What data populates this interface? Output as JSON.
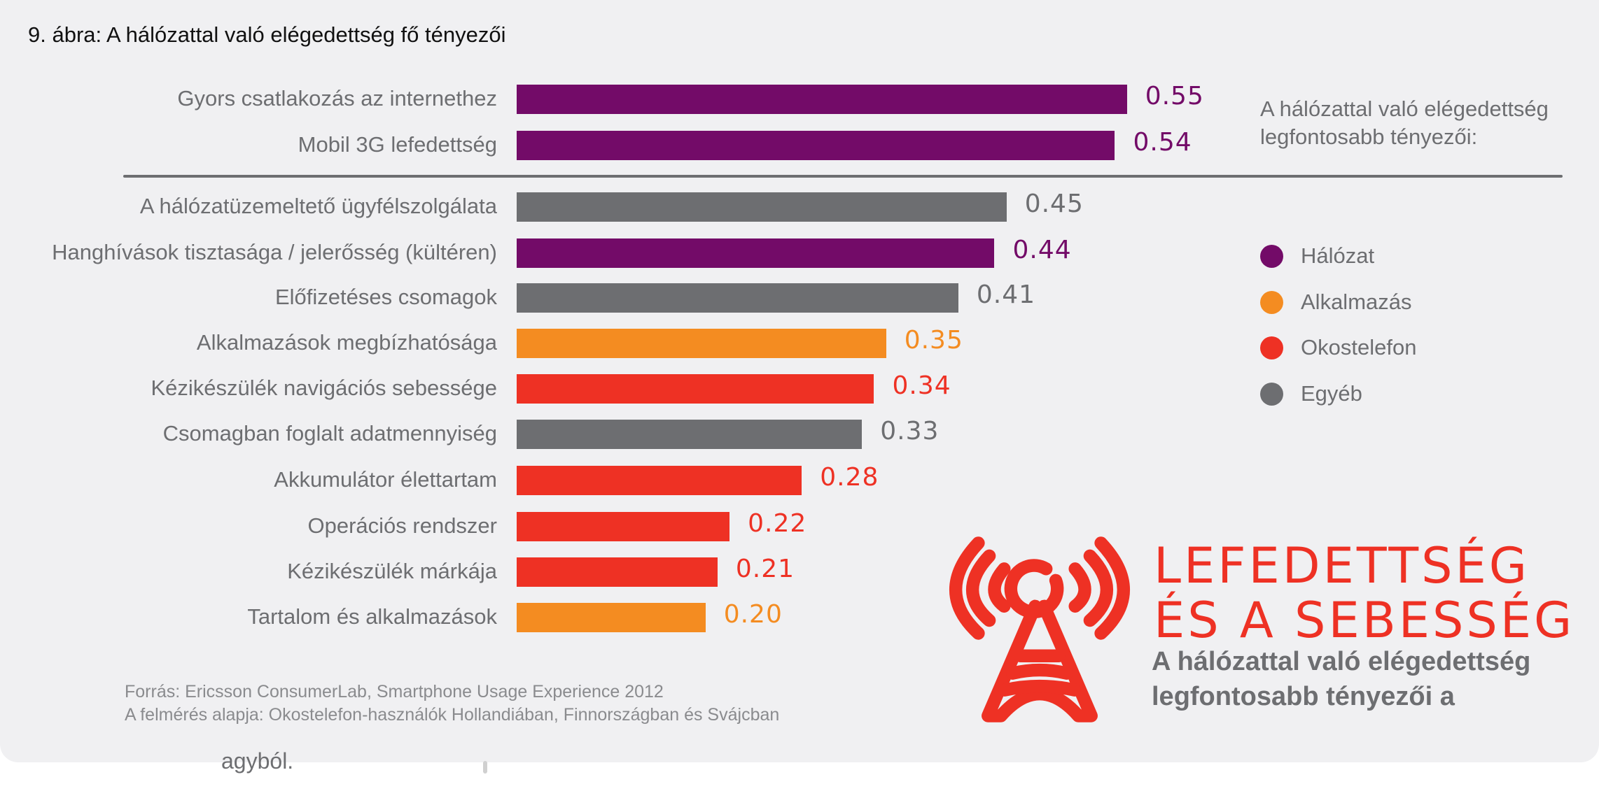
{
  "figure": {
    "title": "9. ábra: A hálózattal való elégedettség fő tényezői"
  },
  "colors": {
    "Hálózat": "#730b68",
    "Alkalmazás": "#f48c21",
    "Okostelefon": "#ee3124",
    "Egyéb": "#6d6e71"
  },
  "chart_data": {
    "type": "bar",
    "orientation": "horizontal",
    "title": "9. ábra: A hálózattal való elégedettség fő tényezői",
    "xlabel": "",
    "ylabel": "",
    "grid": false,
    "legend_position": "right",
    "categories": [
      "Gyors csatlakozás az internethez",
      "Mobil 3G lefedettség",
      "A hálózatüzemeltető ügyfélszolgálata",
      "Hanghívások tisztasága / jelerősség (kültéren)",
      "Előfizetéses csomagok",
      "Alkalmazások megbízhatósága",
      "Kézikészülék navigációs sebessége",
      "Csomagban foglalt adatmennyiség",
      "Akkumulátor élettartam",
      "Operációs rendszer",
      "Kézikészülék márkája",
      "Tartalom és alkalmazások"
    ],
    "values": [
      0.55,
      0.54,
      0.45,
      0.44,
      0.41,
      0.35,
      0.34,
      0.33,
      0.28,
      0.22,
      0.21,
      0.2
    ],
    "value_labels": [
      "0.55",
      "0.54",
      "0.45",
      "0.44",
      "0.41",
      "0.35",
      "0.34",
      "0.33",
      "0.28",
      "0.22",
      "0.21",
      "0.20"
    ],
    "groups": [
      "Hálózat",
      "Hálózat",
      "Egyéb",
      "Hálózat",
      "Egyéb",
      "Alkalmazás",
      "Okostelefon",
      "Egyéb",
      "Okostelefon",
      "Okostelefon",
      "Okostelefon",
      "Alkalmazás"
    ],
    "separator_after_index": 1,
    "legend": {
      "heading": [
        "A hálózattal való elégedettség",
        "legfontosabb tényezői:"
      ],
      "entries": [
        "Hálózat",
        "Alkalmazás",
        "Okostelefon",
        "Egyéb"
      ]
    }
  },
  "footer": {
    "source": "Forrás: Ericsson ConsumerLab, Smartphone Usage Experience 2012",
    "basis": "A felmérés alapja: Okostelefon-használók Hollandiában, Finnországban és Svájcban"
  },
  "promo": {
    "icon": "radio-tower-icon",
    "headline_line1": "LEFEDETTSÉG",
    "headline_line2": "ÉS A SEBESSÉG",
    "sub_line1": "A hálózattal való elégedettség",
    "sub_line2": "legfontosabb tényezői a"
  },
  "page_below": {
    "fragment": "agyból."
  }
}
